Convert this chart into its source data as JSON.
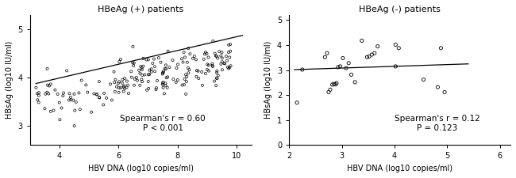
{
  "panel1": {
    "title": "HBeAg (+) patients",
    "xlabel": "HBV DNA (log10 copies/ml)",
    "ylabel": "HBsAg (log10 IU/ml)",
    "xlim": [
      3,
      10.5
    ],
    "ylim": [
      2.6,
      5.3
    ],
    "xticks": [
      4,
      6,
      8,
      10
    ],
    "yticks": [
      3,
      4,
      5
    ],
    "annotation_line1": "Spearman's r = 0.60",
    "annotation_line2": "P < 0.001",
    "trendline_x": [
      3.2,
      10.2
    ],
    "trendline_y": [
      3.88,
      4.88
    ],
    "seed": 12,
    "n_points": 210
  },
  "panel2": {
    "title": "HBeAg (-) patients",
    "xlabel": "HBV DNA (log10 copies/ml)",
    "ylabel": "HBsAg (log10 IU/ml)",
    "xlim": [
      2,
      6.2
    ],
    "ylim": [
      0,
      5.2
    ],
    "xticks": [
      2,
      3,
      4,
      5,
      6
    ],
    "yticks": [
      0,
      1,
      2,
      3,
      4,
      5
    ],
    "annotation_line1": "Spearman's r = 0.12",
    "annotation_line2": "P = 0.123",
    "trendline_x": [
      2.1,
      5.4
    ],
    "trendline_y": [
      3.02,
      3.25
    ],
    "scatter_x": [
      2.15,
      2.25,
      2.68,
      2.72,
      2.75,
      2.78,
      2.82,
      2.85,
      2.88,
      2.9,
      2.93,
      2.97,
      3.02,
      3.08,
      3.13,
      3.18,
      3.25,
      3.38,
      3.48,
      3.52,
      3.57,
      3.62,
      3.68,
      4.02,
      4.08,
      4.02,
      4.82,
      4.88,
      4.95,
      4.55
    ],
    "scatter_y": [
      1.7,
      3.02,
      3.52,
      3.68,
      2.12,
      2.22,
      2.42,
      2.45,
      2.43,
      2.48,
      3.12,
      3.15,
      3.48,
      3.08,
      3.28,
      2.82,
      2.52,
      4.18,
      3.52,
      3.55,
      3.62,
      3.68,
      3.95,
      4.02,
      3.88,
      3.15,
      2.32,
      3.88,
      2.12,
      2.62
    ]
  }
}
